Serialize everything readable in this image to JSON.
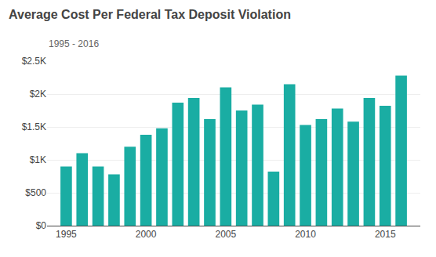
{
  "chart_data": {
    "type": "bar",
    "title": "Average Cost Per Federal Tax Deposit Violation",
    "subtitle": "1995 - 2016",
    "x": [
      1995,
      1996,
      1997,
      1998,
      1999,
      2000,
      2001,
      2002,
      2003,
      2004,
      2005,
      2006,
      2007,
      2008,
      2009,
      2010,
      2011,
      2012,
      2013,
      2014,
      2015,
      2016
    ],
    "values": [
      900,
      1100,
      900,
      780,
      1200,
      1380,
      1480,
      1870,
      1940,
      1620,
      2100,
      1750,
      1840,
      820,
      2150,
      1530,
      1620,
      1780,
      1580,
      1940,
      1820,
      2280
    ],
    "color": "#1aada3",
    "xlim": [
      1993.8,
      2017.2
    ],
    "xticks": [
      1995,
      2000,
      2005,
      2010,
      2015
    ],
    "ylim": [
      0,
      2500
    ],
    "yticks": [
      {
        "value": 0,
        "label": "$0"
      },
      {
        "value": 500,
        "label": "$500"
      },
      {
        "value": 1000,
        "label": "$1K"
      },
      {
        "value": 1500,
        "label": "$1.5K"
      },
      {
        "value": 2000,
        "label": "$2K"
      },
      {
        "value": 2500,
        "label": "$2.5K"
      }
    ],
    "grid": true
  }
}
